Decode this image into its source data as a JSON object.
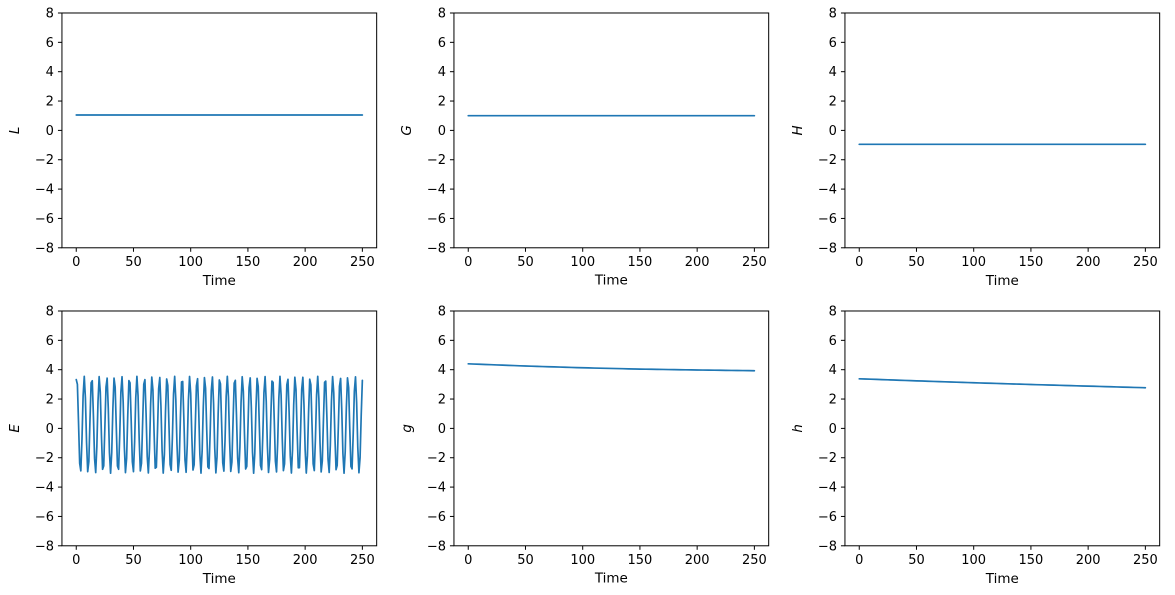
{
  "figure": {
    "background": "#ffffff",
    "line_color": "#1f77b4",
    "axis_color": "#000000",
    "tick_label_color": "#000000"
  },
  "chart_data": [
    {
      "type": "line",
      "xlabel": "Time",
      "ylabel": "L",
      "xlim": [
        -12.5,
        262.5
      ],
      "ylim": [
        -8,
        8
      ],
      "xticks": [
        0,
        50,
        100,
        150,
        200,
        250
      ],
      "yticks": [
        -8,
        -6,
        -4,
        -2,
        0,
        2,
        4,
        6,
        8
      ],
      "grid": false,
      "legend": null,
      "series": [
        {
          "name": "L",
          "kind": "constant",
          "value": 1.05,
          "x_start": 0,
          "x_end": 250
        }
      ]
    },
    {
      "type": "line",
      "xlabel": "Time",
      "ylabel": "G",
      "xlim": [
        -12.5,
        262.5
      ],
      "ylim": [
        -8,
        8
      ],
      "xticks": [
        0,
        50,
        100,
        150,
        200,
        250
      ],
      "yticks": [
        -8,
        -6,
        -4,
        -2,
        0,
        2,
        4,
        6,
        8
      ],
      "grid": false,
      "legend": null,
      "series": [
        {
          "name": "G",
          "kind": "constant",
          "value": 1.0,
          "x_start": 0,
          "x_end": 250
        }
      ]
    },
    {
      "type": "line",
      "xlabel": "Time",
      "ylabel": "H",
      "xlim": [
        -12.5,
        262.5
      ],
      "ylim": [
        -8,
        8
      ],
      "xticks": [
        0,
        50,
        100,
        150,
        200,
        250
      ],
      "yticks": [
        -8,
        -6,
        -4,
        -2,
        0,
        2,
        4,
        6,
        8
      ],
      "grid": false,
      "legend": null,
      "series": [
        {
          "name": "H",
          "kind": "constant",
          "value": -0.95,
          "x_start": 0,
          "x_end": 250
        }
      ]
    },
    {
      "type": "line",
      "xlabel": "Time",
      "ylabel": "E",
      "xlim": [
        -12.5,
        262.5
      ],
      "ylim": [
        -8,
        8
      ],
      "xticks": [
        0,
        50,
        100,
        150,
        200,
        250
      ],
      "yticks": [
        -8,
        -6,
        -4,
        -2,
        0,
        2,
        4,
        6,
        8
      ],
      "grid": false,
      "legend": null,
      "series": [
        {
          "name": "E",
          "kind": "sine",
          "mean": 0.25,
          "amplitude": 3.3,
          "period": 6.58,
          "phase": 1.2,
          "sample_step": 1,
          "x_start": 0,
          "x_end": 250,
          "peak_range": [
            3.0,
            3.65
          ],
          "trough_range": [
            -3.1,
            -2.4
          ]
        }
      ]
    },
    {
      "type": "line",
      "xlabel": "Time",
      "ylabel": "g",
      "xlim": [
        -12.5,
        262.5
      ],
      "ylim": [
        -8,
        8
      ],
      "xticks": [
        0,
        50,
        100,
        150,
        200,
        250
      ],
      "yticks": [
        -8,
        -6,
        -4,
        -2,
        0,
        2,
        4,
        6,
        8
      ],
      "grid": false,
      "legend": null,
      "series": [
        {
          "name": "g",
          "kind": "points",
          "points": [
            [
              0,
              4.4
            ],
            [
              50,
              4.25
            ],
            [
              100,
              4.13
            ],
            [
              150,
              4.04
            ],
            [
              200,
              3.98
            ],
            [
              250,
              3.93
            ]
          ]
        }
      ]
    },
    {
      "type": "line",
      "xlabel": "Time",
      "ylabel": "h",
      "xlim": [
        -12.5,
        262.5
      ],
      "ylim": [
        -8,
        8
      ],
      "xticks": [
        0,
        50,
        100,
        150,
        200,
        250
      ],
      "yticks": [
        -8,
        -6,
        -4,
        -2,
        0,
        2,
        4,
        6,
        8
      ],
      "grid": false,
      "legend": null,
      "series": [
        {
          "name": "h",
          "kind": "points",
          "points": [
            [
              0,
              3.38
            ],
            [
              50,
              3.24
            ],
            [
              100,
              3.11
            ],
            [
              150,
              2.99
            ],
            [
              200,
              2.88
            ],
            [
              250,
              2.77
            ]
          ]
        }
      ]
    }
  ]
}
